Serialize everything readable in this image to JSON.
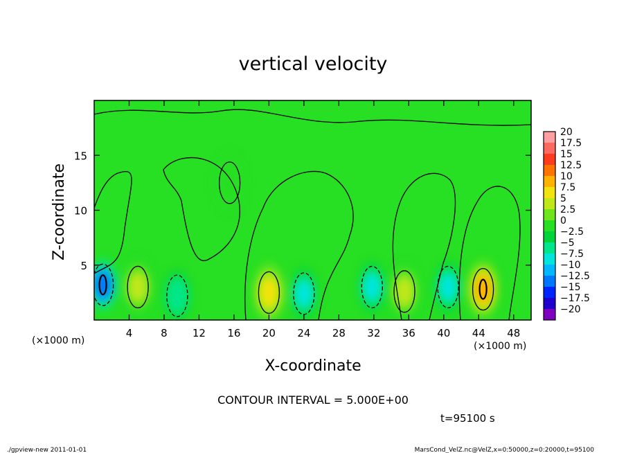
{
  "figure": {
    "title": "vertical velocity",
    "contour_interval_text": "CONTOUR INTERVAL = 5.000E+00",
    "time_text": "t=95100 s",
    "footer_left": "./gpview-new  2011-01-01",
    "footer_right": "MarsCond_VelZ.nc@VelZ,x=0:50000,z=0:20000,t=95100"
  },
  "chart_data": {
    "type": "heatmap",
    "title": "vertical velocity",
    "xlabel": "X-coordinate",
    "ylabel": "Z-coordinate",
    "x_unit_label": "(×1000 m)",
    "y_unit_label": "(×1000 m)",
    "xlim": [
      0,
      50
    ],
    "ylim": [
      0,
      20
    ],
    "x_ticks": [
      4,
      8,
      12,
      16,
      20,
      24,
      28,
      32,
      36,
      40,
      44,
      48
    ],
    "y_ticks": [
      5,
      10,
      15
    ],
    "contour_interval": 5.0,
    "time": "t=95100 s",
    "colorbar": {
      "levels": [
        -20,
        -17.5,
        -15,
        -12.5,
        -10,
        -7.5,
        -5,
        -2.5,
        0,
        2.5,
        5,
        7.5,
        10,
        12.5,
        15,
        17.5,
        20
      ],
      "labels": [
        "20",
        "17.5",
        "15",
        "12.5",
        "10",
        "7.5",
        "5",
        "2.5",
        "0",
        "−2.5",
        "−5",
        "−7.5",
        "−10",
        "−12.5",
        "−15",
        "−17.5",
        "−20"
      ],
      "colors": [
        "#7f00bf",
        "#1f00cc",
        "#0024ff",
        "#0077ff",
        "#00b8ff",
        "#00e6dd",
        "#00e68a",
        "#00d43a",
        "#27df23",
        "#6fe61c",
        "#bfe81a",
        "#f2e30c",
        "#ffb300",
        "#ff7300",
        "#ff3b1e",
        "#ff6a60",
        "#ff9fa0"
      ]
    },
    "features": [
      {
        "kind": "updraft",
        "x": 5.0,
        "z": 3.0,
        "value": 7.0
      },
      {
        "kind": "downdraft",
        "x": 1.0,
        "z": 3.2,
        "value": -12.0
      },
      {
        "kind": "downdraft",
        "x": 9.5,
        "z": 2.2,
        "value": -5.0
      },
      {
        "kind": "updraft",
        "x": 20.0,
        "z": 2.5,
        "value": 8.0
      },
      {
        "kind": "downdraft",
        "x": 24.0,
        "z": 2.4,
        "value": -7.0
      },
      {
        "kind": "updraft",
        "x": 35.5,
        "z": 2.6,
        "value": 7.0
      },
      {
        "kind": "downdraft",
        "x": 31.8,
        "z": 3.0,
        "value": -6.0
      },
      {
        "kind": "downdraft",
        "x": 40.5,
        "z": 3.0,
        "value": -6.0
      },
      {
        "kind": "updraft",
        "x": 44.5,
        "z": 2.8,
        "value": 11.0
      },
      {
        "kind": "updraft",
        "x": 15.5,
        "z": 12.5,
        "value": 1.5
      }
    ]
  }
}
